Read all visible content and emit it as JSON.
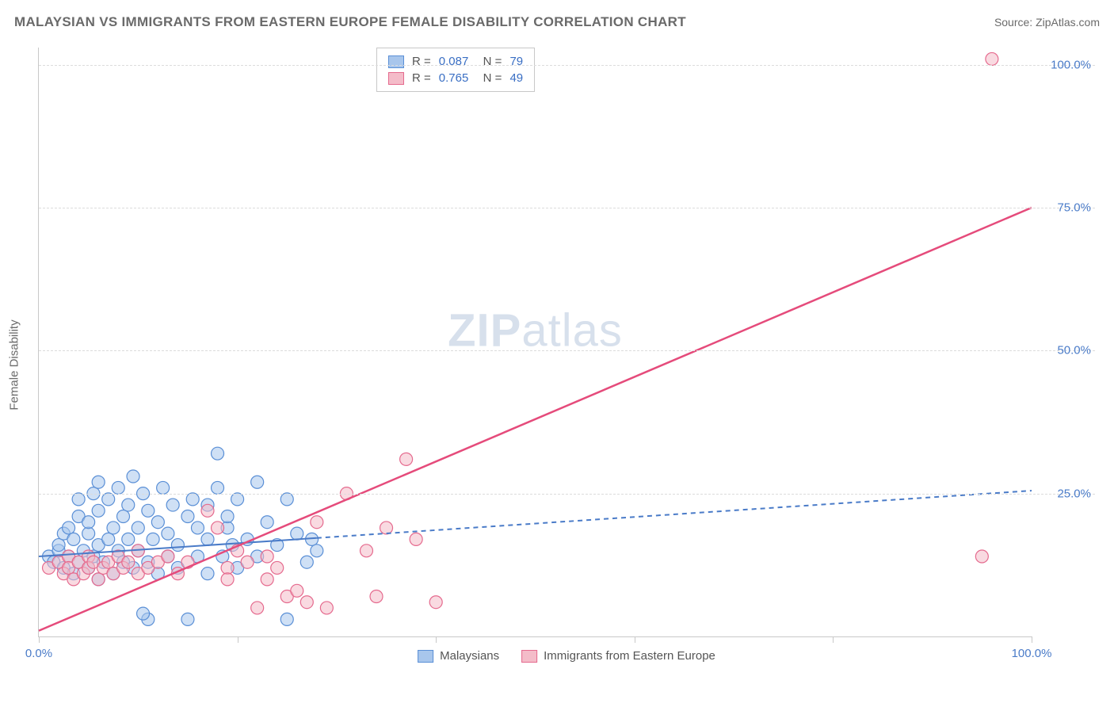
{
  "title": "MALAYSIAN VS IMMIGRANTS FROM EASTERN EUROPE FEMALE DISABILITY CORRELATION CHART",
  "source": "Source: ZipAtlas.com",
  "watermark": "ZIPatlas",
  "y_axis_label": "Female Disability",
  "xlim": [
    0,
    100
  ],
  "ylim": [
    0,
    103
  ],
  "y_ticks": [
    25,
    50,
    75,
    100
  ],
  "y_tick_labels": [
    "25.0%",
    "50.0%",
    "75.0%",
    "100.0%"
  ],
  "x_ticks": [
    0,
    20,
    40,
    60,
    80,
    100
  ],
  "x_tick_labels_shown": {
    "0": "0.0%",
    "100": "100.0%"
  },
  "colors": {
    "series1_fill": "#a8c6ec",
    "series1_stroke": "#5a8fd6",
    "series2_fill": "#f4bcc9",
    "series2_stroke": "#e56a8e",
    "trend1": "#4a7bc8",
    "trend2": "#e54b7b",
    "grid": "#dcdcdc",
    "axis": "#c8c8c8",
    "text_muted": "#6a6a6a",
    "text_value": "#3a6fc4"
  },
  "marker_radius": 8,
  "marker_opacity": 0.55,
  "stats": [
    {
      "r": "0.087",
      "n": "79",
      "swatch_fill": "#a8c6ec",
      "swatch_stroke": "#5a8fd6"
    },
    {
      "r": "0.765",
      "n": "49",
      "swatch_fill": "#f4bcc9",
      "swatch_stroke": "#e56a8e"
    }
  ],
  "legend": [
    {
      "label": "Malaysians",
      "swatch_fill": "#a8c6ec",
      "swatch_stroke": "#5a8fd6"
    },
    {
      "label": "Immigrants from Eastern Europe",
      "swatch_fill": "#f4bcc9",
      "swatch_stroke": "#e56a8e"
    }
  ],
  "trend_lines": {
    "series1": {
      "x1": 0,
      "y1": 14,
      "x2": 100,
      "y2": 25.5,
      "solid_until_x": 28,
      "dash": "6,5",
      "width": 2
    },
    "series2": {
      "x1": 0,
      "y1": 1,
      "x2": 100,
      "y2": 75,
      "solid_until_x": 100,
      "width": 2.5
    }
  },
  "series1_points": [
    [
      1,
      14
    ],
    [
      1.5,
      13
    ],
    [
      2,
      15
    ],
    [
      2,
      16
    ],
    [
      2.5,
      12
    ],
    [
      2.5,
      18
    ],
    [
      3,
      14
    ],
    [
      3,
      19
    ],
    [
      3.5,
      11
    ],
    [
      3.5,
      17
    ],
    [
      4,
      13
    ],
    [
      4,
      21
    ],
    [
      4,
      24
    ],
    [
      4.5,
      15
    ],
    [
      5,
      12
    ],
    [
      5,
      18
    ],
    [
      5,
      20
    ],
    [
      5.5,
      14
    ],
    [
      5.5,
      25
    ],
    [
      6,
      10
    ],
    [
      6,
      16
    ],
    [
      6,
      22
    ],
    [
      6,
      27
    ],
    [
      6.5,
      13
    ],
    [
      7,
      17
    ],
    [
      7,
      24
    ],
    [
      7.5,
      11
    ],
    [
      7.5,
      19
    ],
    [
      8,
      15
    ],
    [
      8,
      26
    ],
    [
      8.5,
      13
    ],
    [
      8.5,
      21
    ],
    [
      9,
      17
    ],
    [
      9,
      23
    ],
    [
      9.5,
      12
    ],
    [
      9.5,
      28
    ],
    [
      10,
      15
    ],
    [
      10,
      19
    ],
    [
      10.5,
      25
    ],
    [
      11,
      3
    ],
    [
      11,
      13
    ],
    [
      11,
      22
    ],
    [
      11.5,
      17
    ],
    [
      12,
      11
    ],
    [
      12,
      20
    ],
    [
      12.5,
      26
    ],
    [
      13,
      14
    ],
    [
      13,
      18
    ],
    [
      13.5,
      23
    ],
    [
      14,
      12
    ],
    [
      14,
      16
    ],
    [
      15,
      3
    ],
    [
      15,
      21
    ],
    [
      15.5,
      24
    ],
    [
      16,
      14
    ],
    [
      16,
      19
    ],
    [
      17,
      11
    ],
    [
      17,
      17
    ],
    [
      17,
      23
    ],
    [
      18,
      26
    ],
    [
      18,
      32
    ],
    [
      18.5,
      14
    ],
    [
      19,
      19
    ],
    [
      19,
      21
    ],
    [
      19.5,
      16
    ],
    [
      20,
      12
    ],
    [
      20,
      24
    ],
    [
      21,
      17
    ],
    [
      22,
      27
    ],
    [
      22,
      14
    ],
    [
      23,
      20
    ],
    [
      24,
      16
    ],
    [
      25,
      3
    ],
    [
      25,
      24
    ],
    [
      26,
      18
    ],
    [
      27,
      13
    ],
    [
      27.5,
      17
    ],
    [
      28,
      15
    ],
    [
      10.5,
      4
    ]
  ],
  "series2_points": [
    [
      1,
      12
    ],
    [
      2,
      13
    ],
    [
      2.5,
      11
    ],
    [
      3,
      14
    ],
    [
      3,
      12
    ],
    [
      3.5,
      10
    ],
    [
      4,
      13
    ],
    [
      4.5,
      11
    ],
    [
      5,
      14
    ],
    [
      5,
      12
    ],
    [
      5.5,
      13
    ],
    [
      6,
      10
    ],
    [
      6.5,
      12
    ],
    [
      7,
      13
    ],
    [
      7.5,
      11
    ],
    [
      8,
      14
    ],
    [
      8.5,
      12
    ],
    [
      9,
      13
    ],
    [
      10,
      11
    ],
    [
      10,
      15
    ],
    [
      11,
      12
    ],
    [
      12,
      13
    ],
    [
      13,
      14
    ],
    [
      14,
      11
    ],
    [
      15,
      13
    ],
    [
      17,
      22
    ],
    [
      18,
      19
    ],
    [
      19,
      12
    ],
    [
      19,
      10
    ],
    [
      20,
      15
    ],
    [
      21,
      13
    ],
    [
      22,
      5
    ],
    [
      23,
      14
    ],
    [
      23,
      10
    ],
    [
      24,
      12
    ],
    [
      25,
      7
    ],
    [
      26,
      8
    ],
    [
      27,
      6
    ],
    [
      28,
      20
    ],
    [
      29,
      5
    ],
    [
      31,
      25
    ],
    [
      33,
      15
    ],
    [
      34,
      7
    ],
    [
      35,
      19
    ],
    [
      37,
      31
    ],
    [
      38,
      17
    ],
    [
      40,
      6
    ],
    [
      96,
      101
    ],
    [
      95,
      14
    ]
  ]
}
